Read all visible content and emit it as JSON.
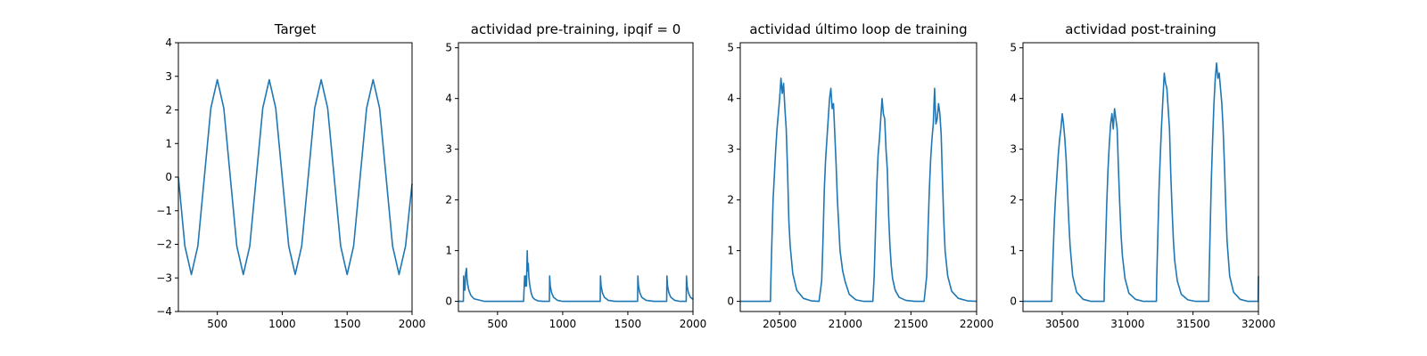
{
  "chart_data": [
    {
      "type": "line",
      "title": "Target",
      "xlabel": "",
      "ylabel": "",
      "xlim": [
        200,
        2000
      ],
      "ylim": [
        -4,
        4
      ],
      "xticks": [
        500,
        1000,
        1500,
        2000
      ],
      "yticks": [
        -4,
        -3,
        -2,
        -1,
        0,
        1,
        2,
        3,
        4
      ],
      "ytick_labels": [
        "−4",
        "−3",
        "−2",
        "−1",
        "0",
        "1",
        "2",
        "3",
        "4"
      ],
      "color": "#1f77b4",
      "x": [
        200,
        250,
        300,
        350,
        400,
        450,
        500,
        550,
        600,
        650,
        700,
        750,
        800,
        850,
        900,
        950,
        1000,
        1050,
        1100,
        1150,
        1200,
        1250,
        1300,
        1350,
        1400,
        1450,
        1500,
        1550,
        1600,
        1650,
        1700,
        1750,
        1800,
        1850,
        1900,
        1950,
        2000
      ],
      "y": [
        0.0,
        -2.05,
        -2.9,
        -2.05,
        0.0,
        2.05,
        2.9,
        2.05,
        0.0,
        -2.05,
        -2.9,
        -2.05,
        0.0,
        2.05,
        2.9,
        2.05,
        0.0,
        -2.05,
        -2.9,
        -2.05,
        0.0,
        2.05,
        2.9,
        2.05,
        0.0,
        -2.05,
        -2.9,
        -2.05,
        0.0,
        2.05,
        2.9,
        2.05,
        0.0,
        -2.05,
        -2.9,
        -2.05,
        -0.2
      ]
    },
    {
      "type": "line",
      "title": "actividad pre-training, ipqif = 0",
      "xlabel": "",
      "ylabel": "",
      "xlim": [
        200,
        2000
      ],
      "ylim": [
        -0.2,
        5.1
      ],
      "xticks": [
        500,
        1000,
        1500,
        2000
      ],
      "yticks": [
        0,
        1,
        2,
        3,
        4,
        5
      ],
      "color": "#1f77b4",
      "x": [
        200,
        238,
        240,
        245,
        250,
        255,
        262,
        266,
        270,
        280,
        295,
        320,
        400,
        500,
        600,
        700,
        708,
        712,
        718,
        722,
        728,
        732,
        736,
        740,
        746,
        752,
        760,
        770,
        785,
        810,
        850,
        898,
        900,
        905,
        915,
        930,
        960,
        1000,
        1100,
        1200,
        1288,
        1290,
        1295,
        1305,
        1320,
        1350,
        1400,
        1500,
        1575,
        1577,
        1582,
        1592,
        1607,
        1640,
        1700,
        1798,
        1800,
        1805,
        1815,
        1830,
        1860,
        1900,
        1948,
        1950,
        1955,
        1965,
        1980,
        2000
      ],
      "y": [
        0,
        0,
        0.5,
        0.3,
        0.22,
        0.55,
        0.65,
        0.45,
        0.35,
        0.22,
        0.12,
        0.05,
        0,
        0,
        0,
        0,
        0.5,
        0.3,
        0.5,
        0.3,
        1.0,
        0.6,
        0.75,
        0.5,
        0.35,
        0.25,
        0.15,
        0.08,
        0.04,
        0.01,
        0,
        0,
        0.5,
        0.3,
        0.17,
        0.08,
        0.02,
        0,
        0,
        0,
        0,
        0.5,
        0.3,
        0.17,
        0.08,
        0.02,
        0,
        0,
        0,
        0.5,
        0.3,
        0.17,
        0.08,
        0.02,
        0,
        0,
        0.5,
        0.3,
        0.17,
        0.08,
        0.02,
        0,
        0,
        0.5,
        0.3,
        0.17,
        0.08,
        0.04
      ]
    },
    {
      "type": "line",
      "title": "actividad último loop de training",
      "xlabel": "",
      "ylabel": "",
      "xlim": [
        20200,
        22000
      ],
      "ylim": [
        -0.2,
        5.1
      ],
      "xticks": [
        20500,
        21000,
        21500,
        22000
      ],
      "yticks": [
        0,
        1,
        2,
        3,
        4,
        5
      ],
      "color": "#1f77b4",
      "x": [
        20200,
        20300,
        20430,
        20432,
        20440,
        20450,
        20460,
        20470,
        20480,
        20490,
        20500,
        20510,
        20520,
        20530,
        20540,
        20550,
        20560,
        20570,
        20580,
        20600,
        20630,
        20680,
        20740,
        20800,
        20820,
        20830,
        20840,
        20850,
        20860,
        20870,
        20880,
        20890,
        20900,
        20910,
        20920,
        20930,
        20940,
        20950,
        20960,
        20970,
        20980,
        21000,
        21030,
        21080,
        21140,
        21210,
        21220,
        21230,
        21240,
        21250,
        21260,
        21270,
        21280,
        21290,
        21300,
        21310,
        21320,
        21330,
        21340,
        21350,
        21360,
        21380,
        21410,
        21460,
        21530,
        21600,
        21620,
        21630,
        21640,
        21650,
        21660,
        21670,
        21680,
        21690,
        21700,
        21710,
        21720,
        21730,
        21740,
        21750,
        21760,
        21780,
        21810,
        21860,
        21930,
        22000
      ],
      "y": [
        0,
        0,
        0,
        0.3,
        1.1,
        2.0,
        2.5,
        3.0,
        3.4,
        3.7,
        4.0,
        4.4,
        4.1,
        4.3,
        3.8,
        3.4,
        2.6,
        1.6,
        1.1,
        0.55,
        0.22,
        0.06,
        0.01,
        0,
        0.4,
        1.2,
        2.2,
        2.8,
        3.2,
        3.6,
        4.0,
        4.2,
        3.8,
        3.9,
        3.3,
        2.7,
        2.0,
        1.5,
        1.0,
        0.8,
        0.6,
        0.38,
        0.14,
        0.03,
        0,
        0,
        0.5,
        1.4,
        2.3,
        2.9,
        3.2,
        3.6,
        4.0,
        3.7,
        3.6,
        3.0,
        2.6,
        1.7,
        1.1,
        0.7,
        0.45,
        0.22,
        0.08,
        0.02,
        0,
        0,
        0.5,
        1.4,
        2.2,
        2.8,
        3.2,
        3.5,
        4.2,
        3.5,
        3.6,
        3.9,
        3.7,
        3.3,
        2.4,
        1.6,
        1.0,
        0.5,
        0.2,
        0.06,
        0.01,
        0
      ]
    },
    {
      "type": "line",
      "title": "actividad post-training",
      "xlabel": "",
      "ylabel": "",
      "xlim": [
        30200,
        32000
      ],
      "ylim": [
        -0.2,
        5.1
      ],
      "xticks": [
        30500,
        31000,
        31500,
        32000
      ],
      "yticks": [
        0,
        1,
        2,
        3,
        4,
        5
      ],
      "color": "#1f77b4",
      "x": [
        30200,
        30300,
        30420,
        30422,
        30430,
        30440,
        30450,
        30460,
        30470,
        30480,
        30490,
        30500,
        30510,
        30520,
        30530,
        30540,
        30550,
        30560,
        30580,
        30610,
        30660,
        30720,
        30820,
        30822,
        30830,
        30840,
        30850,
        30860,
        30870,
        30880,
        30890,
        30900,
        30910,
        30920,
        30930,
        30940,
        30950,
        30960,
        30980,
        31010,
        31060,
        31120,
        31220,
        31222,
        31230,
        31240,
        31250,
        31260,
        31270,
        31280,
        31290,
        31300,
        31310,
        31320,
        31330,
        31340,
        31350,
        31360,
        31380,
        31410,
        31460,
        31520,
        31620,
        31622,
        31630,
        31640,
        31650,
        31660,
        31670,
        31680,
        31690,
        31700,
        31710,
        31720,
        31730,
        31740,
        31750,
        31760,
        31780,
        31810,
        31860,
        31920,
        31998,
        32000
      ],
      "y": [
        0,
        0,
        0,
        0.3,
        0.9,
        1.6,
        2.1,
        2.5,
        2.9,
        3.2,
        3.4,
        3.7,
        3.5,
        3.2,
        2.8,
        2.2,
        1.6,
        1.1,
        0.5,
        0.18,
        0.04,
        0,
        0,
        0.35,
        1.0,
        1.9,
        2.6,
        3.1,
        3.5,
        3.7,
        3.4,
        3.8,
        3.6,
        3.4,
        2.6,
        1.9,
        1.3,
        0.9,
        0.45,
        0.16,
        0.04,
        0,
        0,
        0.4,
        1.2,
        2.2,
        2.9,
        3.5,
        4.0,
        4.5,
        4.3,
        4.2,
        3.8,
        3.4,
        2.5,
        1.8,
        1.2,
        0.8,
        0.4,
        0.14,
        0.03,
        0,
        0,
        0.4,
        1.3,
        2.4,
        3.2,
        3.9,
        4.4,
        4.7,
        4.4,
        4.5,
        4.2,
        3.9,
        3.4,
        2.7,
        1.9,
        1.2,
        0.5,
        0.18,
        0.04,
        0,
        0,
        0.5
      ]
    }
  ]
}
